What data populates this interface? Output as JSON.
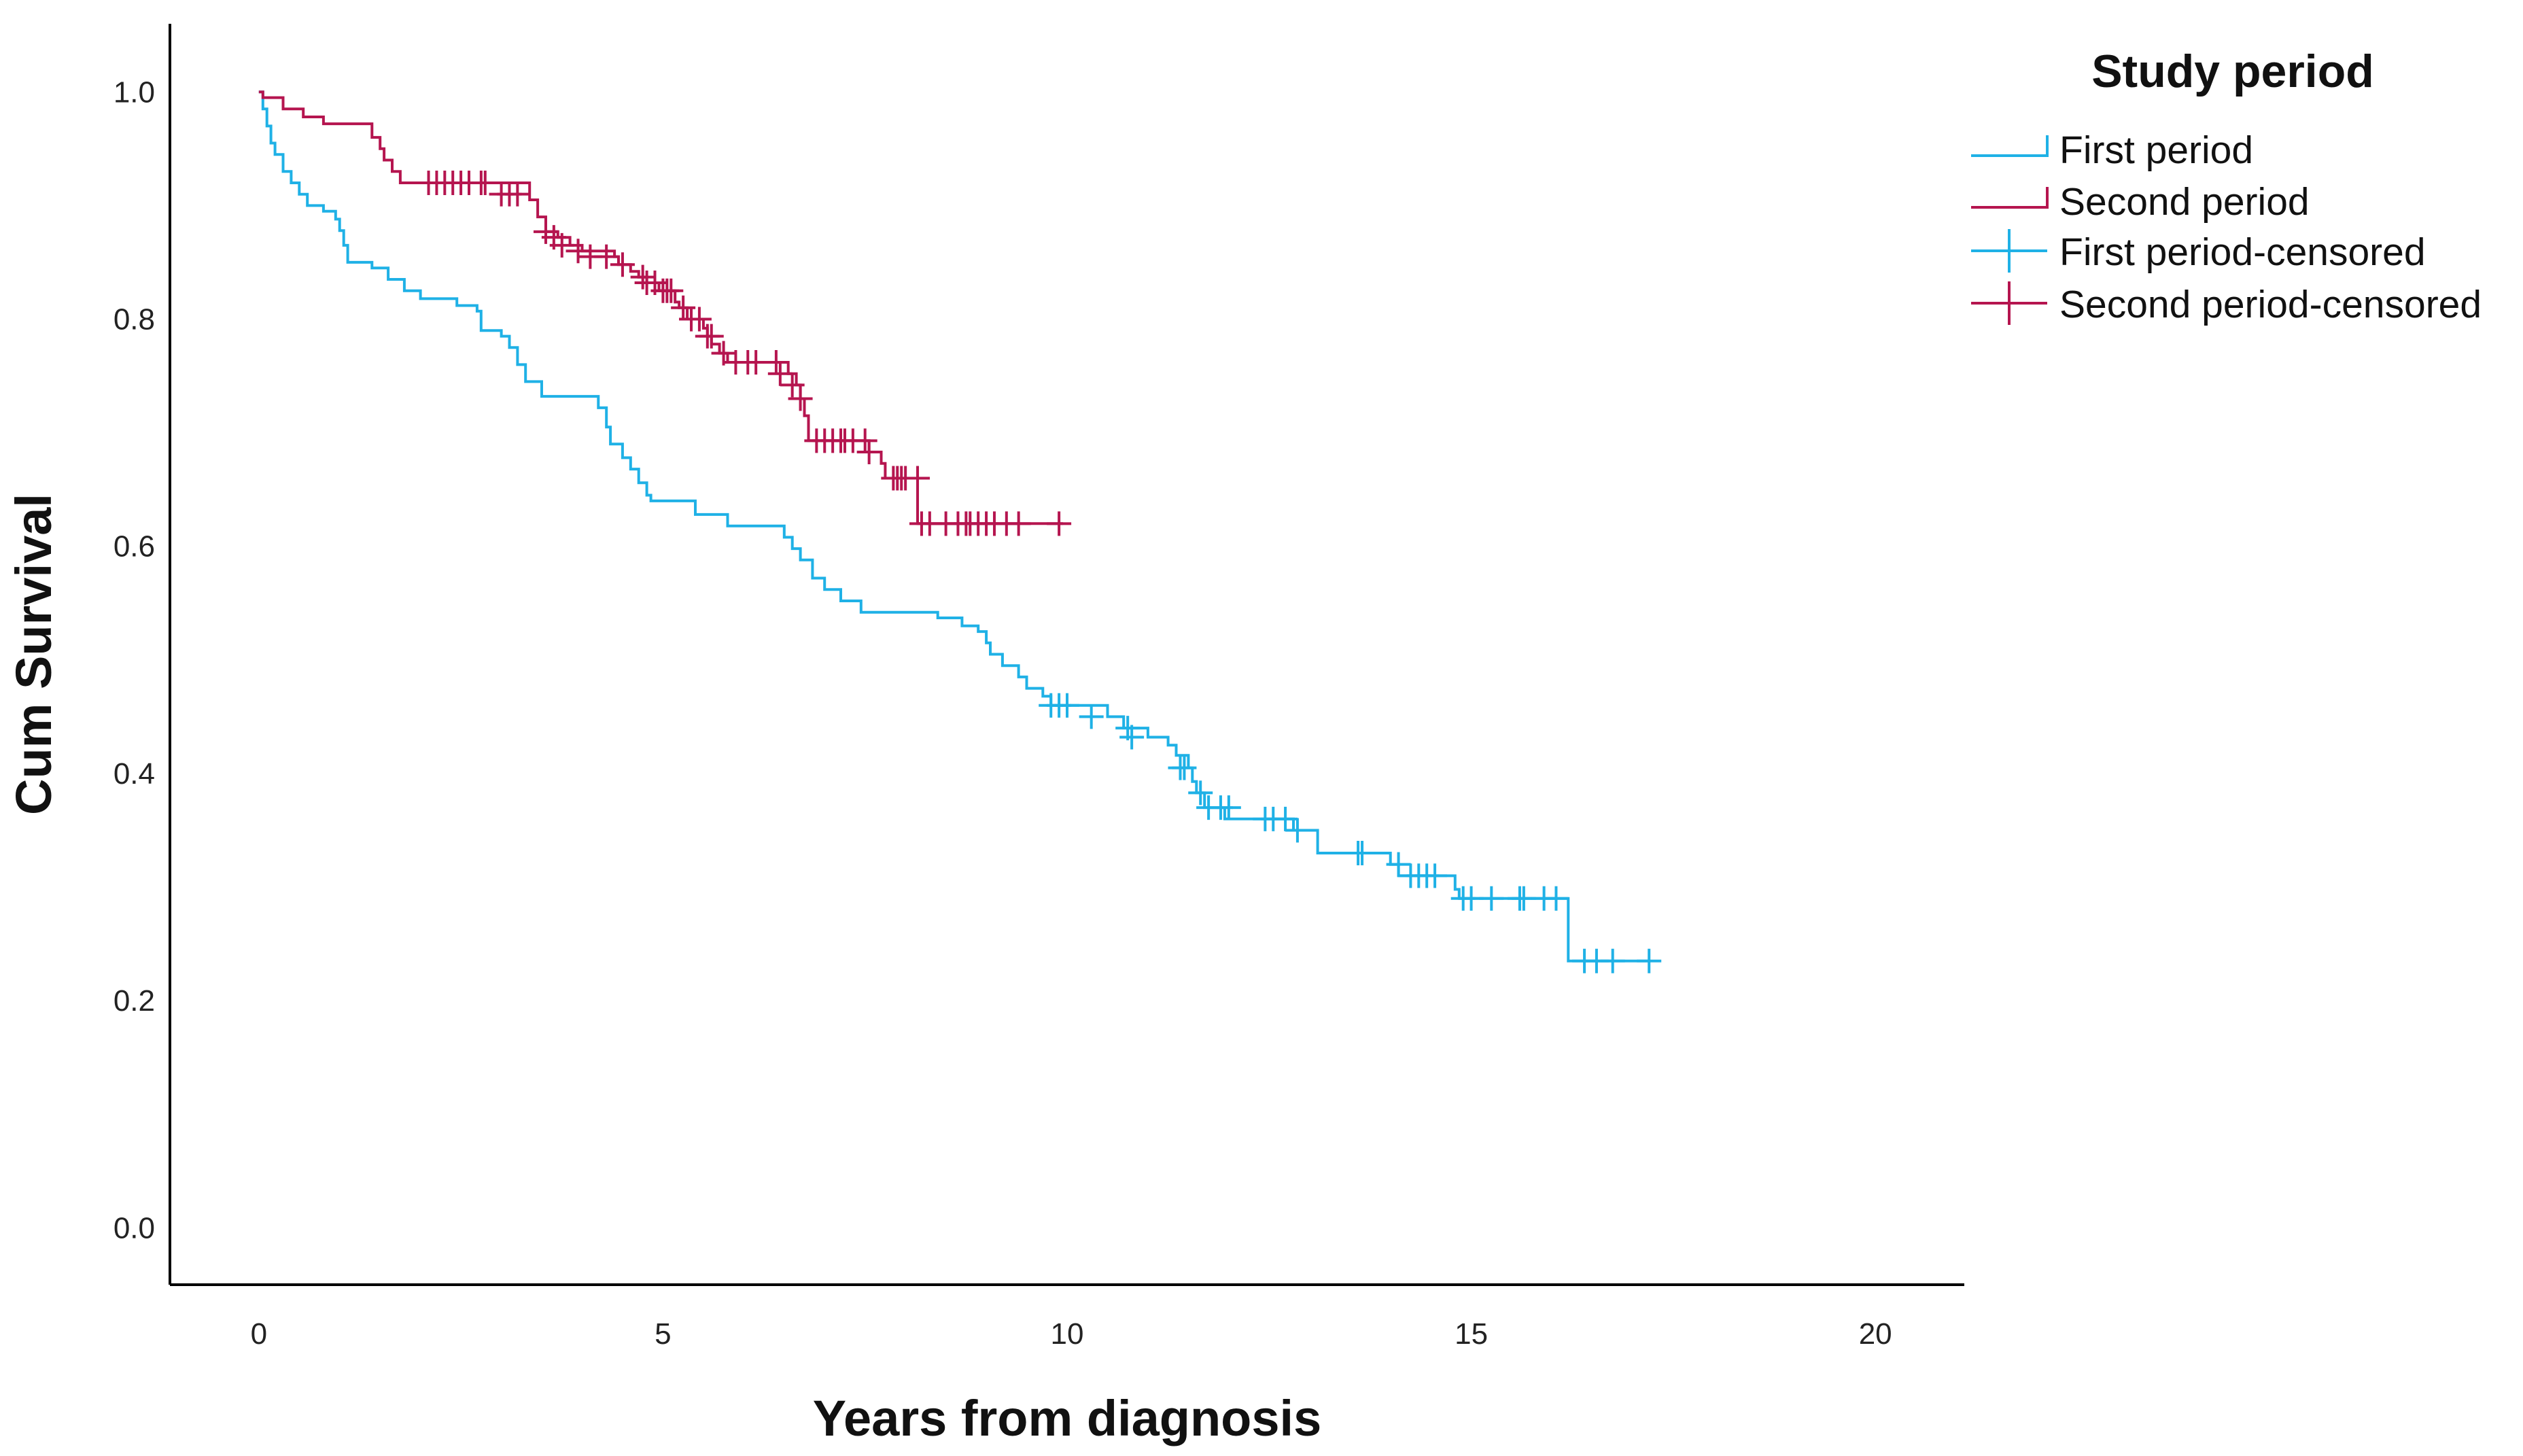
{
  "colors": {
    "first": "#1fb1e6",
    "second": "#b5154f",
    "axis": "#000000",
    "text": "#222222"
  },
  "chart_data": {
    "type": "line",
    "subtype": "kaplan-meier survival curve",
    "title": "",
    "xlabel": "Years from diagnosis",
    "ylabel": "Cum Survival",
    "xlim": [
      -1.1,
      21.1
    ],
    "ylim": [
      -0.05,
      1.06
    ],
    "x_ticks": [
      0,
      5,
      10,
      15,
      20
    ],
    "x_tick_labels": [
      "0",
      "5",
      "10",
      "15",
      "20"
    ],
    "y_ticks": [
      0.0,
      0.2,
      0.4,
      0.6,
      0.8,
      1.0
    ],
    "y_tick_labels": [
      "0.0",
      "0.2",
      "0.4",
      "0.6",
      "0.8",
      "1.0"
    ],
    "grid": false,
    "legend": {
      "title": "Study period",
      "position": "top-right",
      "entries": [
        {
          "label": "First period",
          "series": "first",
          "kind": "line"
        },
        {
          "label": "Second period",
          "series": "second",
          "kind": "line"
        },
        {
          "label": "First period-censored",
          "series": "first",
          "kind": "censor"
        },
        {
          "label": "Second period-censored",
          "series": "second",
          "kind": "censor"
        }
      ]
    },
    "series": [
      {
        "name": "First period",
        "key": "first",
        "steps": [
          [
            0,
            1.0
          ],
          [
            0.05,
            0.985
          ],
          [
            0.1,
            0.97
          ],
          [
            0.15,
            0.955
          ],
          [
            0.2,
            0.945
          ],
          [
            0.3,
            0.93
          ],
          [
            0.4,
            0.92
          ],
          [
            0.5,
            0.91
          ],
          [
            0.6,
            0.9
          ],
          [
            0.8,
            0.895
          ],
          [
            0.95,
            0.888
          ],
          [
            1.0,
            0.878
          ],
          [
            1.05,
            0.865
          ],
          [
            1.1,
            0.85
          ],
          [
            1.4,
            0.845
          ],
          [
            1.6,
            0.835
          ],
          [
            1.8,
            0.825
          ],
          [
            2.0,
            0.818
          ],
          [
            2.45,
            0.812
          ],
          [
            2.7,
            0.807
          ],
          [
            2.75,
            0.79
          ],
          [
            3.0,
            0.785
          ],
          [
            3.1,
            0.775
          ],
          [
            3.2,
            0.76
          ],
          [
            3.3,
            0.745
          ],
          [
            3.5,
            0.732
          ],
          [
            4.2,
            0.722
          ],
          [
            4.3,
            0.705
          ],
          [
            4.35,
            0.69
          ],
          [
            4.5,
            0.678
          ],
          [
            4.6,
            0.668
          ],
          [
            4.7,
            0.656
          ],
          [
            4.8,
            0.645
          ],
          [
            4.85,
            0.64
          ],
          [
            5.4,
            0.628
          ],
          [
            5.8,
            0.618
          ],
          [
            6.5,
            0.608
          ],
          [
            6.6,
            0.598
          ],
          [
            6.7,
            0.588
          ],
          [
            6.85,
            0.572
          ],
          [
            7.0,
            0.562
          ],
          [
            7.2,
            0.552
          ],
          [
            7.45,
            0.542
          ],
          [
            8.4,
            0.537
          ],
          [
            8.7,
            0.53
          ],
          [
            8.9,
            0.525
          ],
          [
            9.0,
            0.515
          ],
          [
            9.05,
            0.505
          ],
          [
            9.2,
            0.495
          ],
          [
            9.4,
            0.485
          ],
          [
            9.5,
            0.475
          ],
          [
            9.7,
            0.468
          ],
          [
            9.8,
            0.46
          ],
          [
            10.5,
            0.45
          ],
          [
            10.7,
            0.44
          ],
          [
            11.0,
            0.432
          ],
          [
            11.25,
            0.425
          ],
          [
            11.35,
            0.416
          ],
          [
            11.5,
            0.405
          ],
          [
            11.55,
            0.393
          ],
          [
            11.6,
            0.383
          ],
          [
            11.7,
            0.37
          ],
          [
            11.95,
            0.36
          ],
          [
            12.8,
            0.35
          ],
          [
            13.1,
            0.34
          ],
          [
            13.1,
            0.33
          ],
          [
            14.0,
            0.32
          ],
          [
            14.1,
            0.31
          ],
          [
            14.8,
            0.298
          ],
          [
            14.85,
            0.29
          ],
          [
            16.2,
            0.235
          ],
          [
            17.2,
            0.235
          ]
        ],
        "censored": [
          [
            9.8,
            0.46
          ],
          [
            9.9,
            0.46
          ],
          [
            10.0,
            0.46
          ],
          [
            10.3,
            0.45
          ],
          [
            10.75,
            0.44
          ],
          [
            10.8,
            0.432
          ],
          [
            11.4,
            0.405
          ],
          [
            11.45,
            0.405
          ],
          [
            11.65,
            0.383
          ],
          [
            11.75,
            0.37
          ],
          [
            11.9,
            0.37
          ],
          [
            12.0,
            0.37
          ],
          [
            12.45,
            0.36
          ],
          [
            12.55,
            0.36
          ],
          [
            12.7,
            0.36
          ],
          [
            12.85,
            0.35
          ],
          [
            13.6,
            0.33
          ],
          [
            13.65,
            0.33
          ],
          [
            14.1,
            0.32
          ],
          [
            14.25,
            0.31
          ],
          [
            14.35,
            0.31
          ],
          [
            14.45,
            0.31
          ],
          [
            14.55,
            0.31
          ],
          [
            14.9,
            0.29
          ],
          [
            15.0,
            0.29
          ],
          [
            15.25,
            0.29
          ],
          [
            15.6,
            0.29
          ],
          [
            15.65,
            0.29
          ],
          [
            15.9,
            0.29
          ],
          [
            16.05,
            0.29
          ],
          [
            16.4,
            0.235
          ],
          [
            16.55,
            0.235
          ],
          [
            16.75,
            0.235
          ],
          [
            17.2,
            0.235
          ]
        ]
      },
      {
        "name": "Second period",
        "key": "second",
        "steps": [
          [
            0,
            1.0
          ],
          [
            0.05,
            0.995
          ],
          [
            0.3,
            0.985
          ],
          [
            0.55,
            0.978
          ],
          [
            0.8,
            0.972
          ],
          [
            1.4,
            0.96
          ],
          [
            1.5,
            0.95
          ],
          [
            1.55,
            0.94
          ],
          [
            1.65,
            0.93
          ],
          [
            1.75,
            0.92
          ],
          [
            3.35,
            0.905
          ],
          [
            3.45,
            0.89
          ],
          [
            3.55,
            0.877
          ],
          [
            3.7,
            0.872
          ],
          [
            3.85,
            0.865
          ],
          [
            4.0,
            0.86
          ],
          [
            4.4,
            0.855
          ],
          [
            4.45,
            0.848
          ],
          [
            4.6,
            0.842
          ],
          [
            4.7,
            0.837
          ],
          [
            4.8,
            0.832
          ],
          [
            4.95,
            0.825
          ],
          [
            5.15,
            0.815
          ],
          [
            5.2,
            0.81
          ],
          [
            5.3,
            0.8
          ],
          [
            5.5,
            0.792
          ],
          [
            5.55,
            0.785
          ],
          [
            5.6,
            0.778
          ],
          [
            5.7,
            0.77
          ],
          [
            5.8,
            0.762
          ],
          [
            6.55,
            0.752
          ],
          [
            6.65,
            0.742
          ],
          [
            6.7,
            0.73
          ],
          [
            6.75,
            0.715
          ],
          [
            6.8,
            0.693
          ],
          [
            7.55,
            0.683
          ],
          [
            7.7,
            0.673
          ],
          [
            7.75,
            0.66
          ],
          [
            8.15,
            0.62
          ],
          [
            9.95,
            0.62
          ]
        ],
        "censored": [
          [
            2.1,
            0.92
          ],
          [
            2.2,
            0.92
          ],
          [
            2.3,
            0.92
          ],
          [
            2.4,
            0.92
          ],
          [
            2.5,
            0.92
          ],
          [
            2.6,
            0.92
          ],
          [
            2.75,
            0.92
          ],
          [
            2.8,
            0.92
          ],
          [
            3.0,
            0.91
          ],
          [
            3.1,
            0.91
          ],
          [
            3.2,
            0.91
          ],
          [
            3.55,
            0.877
          ],
          [
            3.65,
            0.872
          ],
          [
            3.75,
            0.865
          ],
          [
            3.95,
            0.86
          ],
          [
            4.1,
            0.855
          ],
          [
            4.3,
            0.855
          ],
          [
            4.5,
            0.848
          ],
          [
            4.75,
            0.837
          ],
          [
            4.8,
            0.832
          ],
          [
            4.9,
            0.832
          ],
          [
            5.0,
            0.825
          ],
          [
            5.05,
            0.825
          ],
          [
            5.1,
            0.825
          ],
          [
            5.25,
            0.81
          ],
          [
            5.35,
            0.8
          ],
          [
            5.45,
            0.8
          ],
          [
            5.55,
            0.785
          ],
          [
            5.6,
            0.785
          ],
          [
            5.75,
            0.77
          ],
          [
            5.9,
            0.762
          ],
          [
            6.05,
            0.762
          ],
          [
            6.15,
            0.762
          ],
          [
            6.4,
            0.762
          ],
          [
            6.45,
            0.752
          ],
          [
            6.6,
            0.742
          ],
          [
            6.7,
            0.73
          ],
          [
            6.9,
            0.693
          ],
          [
            7.0,
            0.693
          ],
          [
            7.1,
            0.693
          ],
          [
            7.2,
            0.693
          ],
          [
            7.25,
            0.693
          ],
          [
            7.35,
            0.693
          ],
          [
            7.5,
            0.693
          ],
          [
            7.55,
            0.683
          ],
          [
            7.85,
            0.66
          ],
          [
            7.9,
            0.66
          ],
          [
            7.95,
            0.66
          ],
          [
            8.0,
            0.66
          ],
          [
            8.15,
            0.66
          ],
          [
            8.2,
            0.62
          ],
          [
            8.3,
            0.62
          ],
          [
            8.5,
            0.62
          ],
          [
            8.65,
            0.62
          ],
          [
            8.75,
            0.62
          ],
          [
            8.8,
            0.62
          ],
          [
            8.9,
            0.62
          ],
          [
            9.0,
            0.62
          ],
          [
            9.1,
            0.62
          ],
          [
            9.25,
            0.62
          ],
          [
            9.4,
            0.62
          ],
          [
            9.9,
            0.62
          ]
        ]
      }
    ]
  }
}
